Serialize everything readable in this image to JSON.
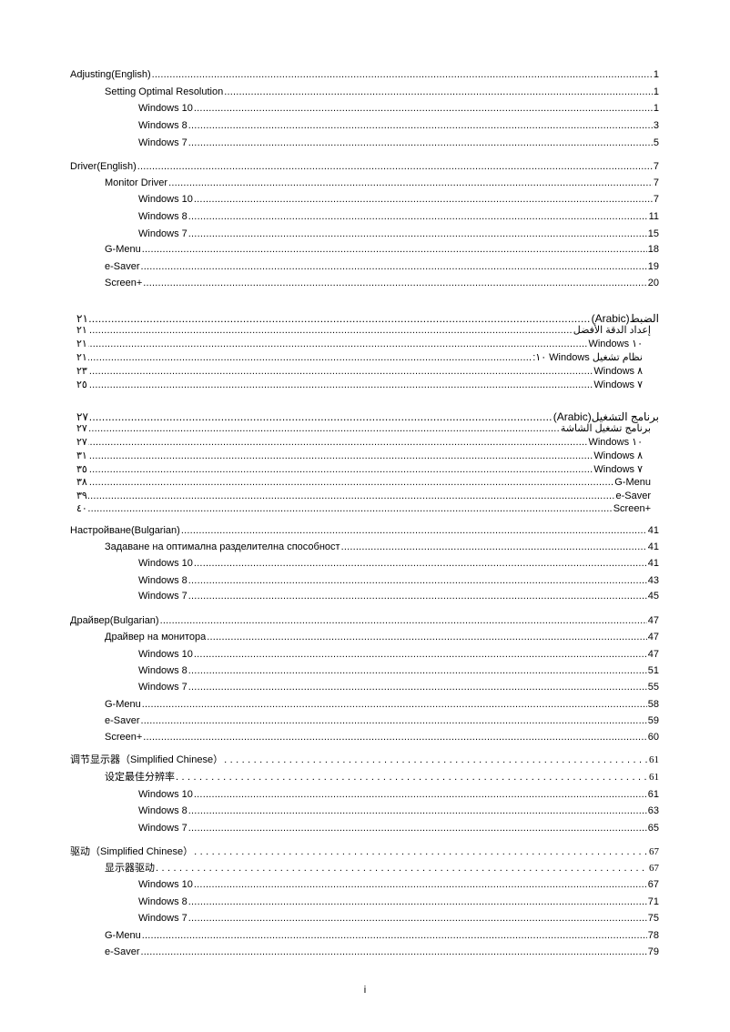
{
  "toc": [
    {
      "text": "Adjusting(English)",
      "page": "1",
      "level": 0
    },
    {
      "text": "Setting Optimal Resolution",
      "page": "1",
      "level": 1
    },
    {
      "text": "Windows 10",
      "page": "1",
      "level": 2
    },
    {
      "text": "Windows 8",
      "page": "3",
      "level": 2
    },
    {
      "text": "Windows 7",
      "page": "5",
      "level": 2
    },
    {
      "text": "Driver(English)",
      "page": "7",
      "level": 0
    },
    {
      "text": "Monitor Driver",
      "page": "7",
      "level": 1
    },
    {
      "text": "Windows 10",
      "page": "7",
      "level": 2
    },
    {
      "text": "Windows 8",
      "page": "11",
      "level": 2
    },
    {
      "text": "Windows 7",
      "page": "15",
      "level": 2
    },
    {
      "text": "G-Menu",
      "page": "18",
      "level": 1
    },
    {
      "text": "e-Saver",
      "page": "19",
      "level": 1
    },
    {
      "text": "Screen+",
      "page": "20",
      "level": 1
    },
    {
      "text": "الضبط(Arabic)",
      "page": "٢١",
      "level": 0,
      "rtl": true
    },
    {
      "text": "إعداد الدقة الأفضل",
      "page": "٢١",
      "level": 1,
      "rtl": true
    },
    {
      "text": "Windows ١٠",
      "page": "٢١",
      "level": 2,
      "rtl": true
    },
    {
      "text": "نظام تشغيل Windows ١٠:",
      "page": "٢١",
      "level": 2,
      "rtl": true
    },
    {
      "text": "Windows ٨",
      "page": "٢٣",
      "level": 2,
      "rtl": true
    },
    {
      "text": "Windows ٧",
      "page": "٢٥",
      "level": 2,
      "rtl": true
    },
    {
      "text": "برنامج التشغيل(Arabic)",
      "page": "٢٧",
      "level": 0,
      "rtl": true
    },
    {
      "text": "برنامج تشغيل الشاشة",
      "page": "٢٧",
      "level": 1,
      "rtl": true
    },
    {
      "text": "Windows ١٠",
      "page": "٢٧",
      "level": 2,
      "rtl": true
    },
    {
      "text": "Windows ٨",
      "page": "٣١",
      "level": 2,
      "rtl": true
    },
    {
      "text": "Windows ٧",
      "page": "٣٥",
      "level": 2,
      "rtl": true
    },
    {
      "text": "G-Menu",
      "page": "٣٨",
      "level": 1,
      "rtl": true
    },
    {
      "text": "e-Saver",
      "page": "٣٩",
      "level": 1,
      "rtl": true
    },
    {
      "text": "Screen+",
      "page": "٤٠",
      "level": 1,
      "rtl": true
    },
    {
      "text": "Настройване(Bulgarian)",
      "page": "41",
      "level": 0
    },
    {
      "text": "Задаване на оптимална разделителна способност",
      "page": "41",
      "level": 1
    },
    {
      "text": "Windows 10",
      "page": "41",
      "level": 2
    },
    {
      "text": "Windows 8",
      "page": "43",
      "level": 2
    },
    {
      "text": "Windows 7",
      "page": "45",
      "level": 2
    },
    {
      "text": "Драйвер(Bulgarian)",
      "page": "47",
      "level": 0
    },
    {
      "text": "Драйвер на монитора",
      "page": "47",
      "level": 1
    },
    {
      "text": "Windows 10",
      "page": "47",
      "level": 2
    },
    {
      "text": "Windows 8",
      "page": "51",
      "level": 2
    },
    {
      "text": "Windows 7",
      "page": "55",
      "level": 2
    },
    {
      "text": "G-Menu",
      "page": "58",
      "level": 1
    },
    {
      "text": "e-Saver",
      "page": "59",
      "level": 1
    },
    {
      "text": "Screen+",
      "page": "60",
      "level": 1
    },
    {
      "text": "调节显示器（Simplified Chinese）",
      "page": "61",
      "level": 0,
      "cn": true
    },
    {
      "text": "设定最佳分辨率",
      "page": "61",
      "level": 1,
      "cn": true
    },
    {
      "text": "Windows 10",
      "page": "61",
      "level": 2
    },
    {
      "text": "Windows 8",
      "page": "63",
      "level": 2
    },
    {
      "text": "Windows 7",
      "page": "65",
      "level": 2
    },
    {
      "text": "驱动（Simplified Chinese）",
      "page": "67",
      "level": 0,
      "cn": true
    },
    {
      "text": "显示器驱动",
      "page": "67",
      "level": 1,
      "cn": true
    },
    {
      "text": "Windows 10",
      "page": "67",
      "level": 2
    },
    {
      "text": "Windows 8",
      "page": "71",
      "level": 2
    },
    {
      "text": "Windows 7",
      "page": "75",
      "level": 2
    },
    {
      "text": "G-Menu",
      "page": "78",
      "level": 1
    },
    {
      "text": "e-Saver",
      "page": "79",
      "level": 1
    }
  ],
  "footer": {
    "page_number": "i"
  }
}
